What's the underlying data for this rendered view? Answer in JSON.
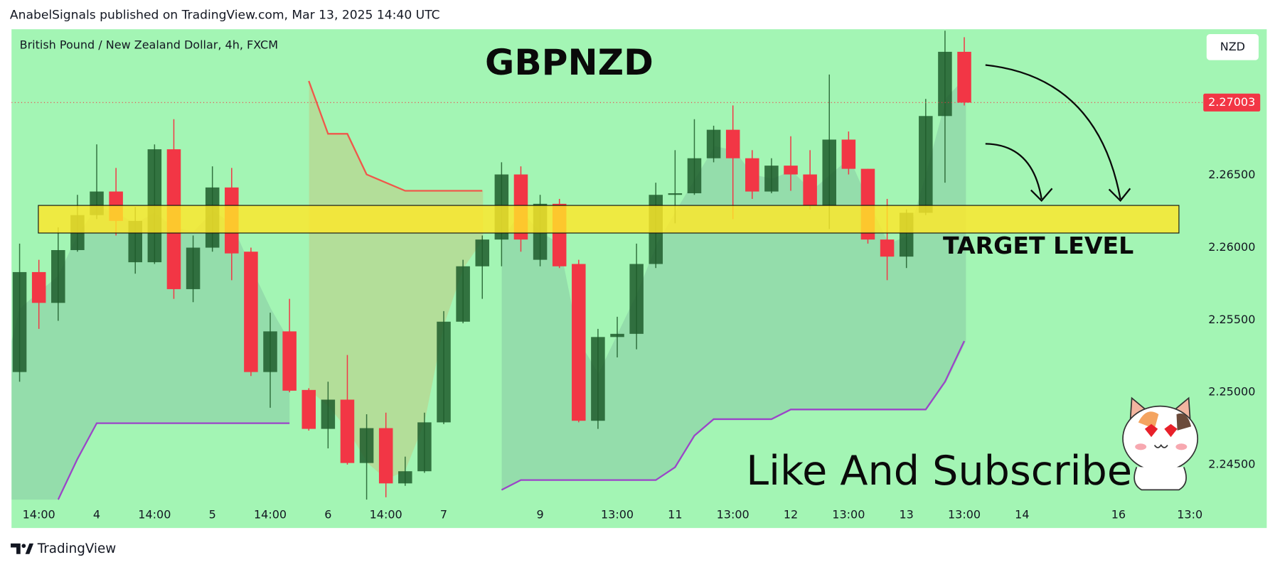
{
  "header": {
    "text": "AnabelSignals published on TradingView.com, Mar 13, 2025 14:40 UTC"
  },
  "footer": {
    "brand": "TradingView"
  },
  "chart_data": {
    "type": "candlestick",
    "title": "GBPNZD",
    "symbol_label": "British Pound / New Zealand Dollar, 4h, FXCM",
    "currency": "NZD",
    "x": [
      0,
      1,
      2,
      3,
      4,
      5,
      6,
      7,
      8,
      9,
      10,
      11,
      12,
      13,
      14,
      15,
      16,
      17,
      18,
      19,
      20,
      21,
      22,
      23,
      24,
      25,
      26,
      27,
      28,
      29,
      30,
      31,
      32,
      33,
      34,
      35,
      36,
      37,
      38,
      39,
      40,
      41,
      42,
      43,
      44,
      45,
      46,
      47,
      48,
      49
    ],
    "open": [
      2.2514,
      2.25831,
      2.25618,
      2.25983,
      2.26225,
      2.26388,
      2.25899,
      2.25899,
      2.2668,
      2.25713,
      2.26,
      2.26416,
      2.25972,
      2.2514,
      2.25421,
      2.25016,
      2.24747,
      2.24949,
      2.24511,
      2.24752,
      2.2437,
      2.24454,
      2.24792,
      2.25488,
      2.25871,
      2.26056,
      2.26506,
      2.25916,
      2.26303,
      2.25887,
      2.24803,
      2.25382,
      2.25404,
      2.25887,
      2.26365,
      2.26376,
      2.26618,
      2.26815,
      2.26618,
      2.26388,
      2.26567,
      2.26506,
      2.26292,
      2.26747,
      2.26545,
      2.26056,
      2.25938,
      2.26241,
      2.2691,
      2.27354
    ],
    "high": [
      2.26028,
      2.25916,
      2.2614,
      2.26365,
      2.26714,
      2.26551,
      2.26281,
      2.26714,
      2.26888,
      2.26084,
      2.26562,
      2.26551,
      2.26,
      2.2555,
      2.25646,
      2.25028,
      2.25073,
      2.25258,
      2.24848,
      2.24859,
      2.24555,
      2.24859,
      2.25561,
      2.25916,
      2.26084,
      2.2659,
      2.26562,
      2.26365,
      2.26337,
      2.25916,
      2.25438,
      2.25522,
      2.26028,
      2.26449,
      2.26674,
      2.26888,
      2.26843,
      2.26983,
      2.26674,
      2.26618,
      2.2677,
      2.26674,
      2.27197,
      2.26803,
      2.26545,
      2.26337,
      2.26264,
      2.27028,
      2.275,
      2.27455
    ],
    "low": [
      2.25073,
      2.25438,
      2.25494,
      2.25972,
      2.26197,
      2.26084,
      2.2582,
      2.25887,
      2.25646,
      2.25623,
      2.25972,
      2.25775,
      2.25112,
      2.24893,
      2.25,
      2.24735,
      2.24612,
      2.245,
      2.24258,
      2.24274,
      2.24353,
      2.24443,
      2.2478,
      2.25477,
      2.25646,
      2.25871,
      2.25972,
      2.25871,
      2.25859,
      2.24792,
      2.24747,
      2.25241,
      2.25297,
      2.25859,
      2.26168,
      2.26365,
      2.2659,
      2.26197,
      2.26337,
      2.26376,
      2.26393,
      2.26264,
      2.26129,
      2.26506,
      2.26028,
      2.25775,
      2.25859,
      2.26225,
      2.26449,
      2.26983
    ],
    "close": [
      2.25831,
      2.25618,
      2.25983,
      2.26225,
      2.26388,
      2.26185,
      2.26185,
      2.2668,
      2.25713,
      2.26,
      2.26416,
      2.2596,
      2.2514,
      2.25421,
      2.25011,
      2.24747,
      2.24949,
      2.24511,
      2.24752,
      2.2437,
      2.24454,
      2.24792,
      2.25488,
      2.25871,
      2.26056,
      2.26506,
      2.26056,
      2.26303,
      2.25871,
      2.24803,
      2.25382,
      2.25404,
      2.25887,
      2.26365,
      2.26376,
      2.26618,
      2.26815,
      2.26618,
      2.26388,
      2.26567,
      2.26506,
      2.26292,
      2.26747,
      2.26545,
      2.26056,
      2.25938,
      2.26241,
      2.2691,
      2.27354,
      2.27003
    ],
    "up_color": "#1f5c2b",
    "down_color": "#f23645",
    "xlim": [
      -0.42,
      61.4
    ],
    "xticks": [
      {
        "value": 1,
        "label": "14:00"
      },
      {
        "value": 4,
        "label": "4"
      },
      {
        "value": 7,
        "label": "14:00"
      },
      {
        "value": 10,
        "label": "5"
      },
      {
        "value": 13,
        "label": "14:00"
      },
      {
        "value": 16,
        "label": "6"
      },
      {
        "value": 19,
        "label": "14:00"
      },
      {
        "value": 22,
        "label": "7"
      },
      {
        "value": 27,
        "label": "9"
      },
      {
        "value": 31,
        "label": "13:00"
      },
      {
        "value": 34,
        "label": "11"
      },
      {
        "value": 37,
        "label": "13:00"
      },
      {
        "value": 40,
        "label": "12"
      },
      {
        "value": 43,
        "label": "13:00"
      },
      {
        "value": 46,
        "label": "13"
      },
      {
        "value": 49,
        "label": "13:00"
      },
      {
        "value": 52,
        "label": "14"
      },
      {
        "value": 57,
        "label": "16"
      },
      {
        "value": 60.7,
        "label": "13:0"
      }
    ],
    "ylim": [
      2.2423,
      2.2751
    ],
    "yticks": [
      {
        "value": 2.245,
        "label": "2.24500"
      },
      {
        "value": 2.25,
        "label": "2.25000"
      },
      {
        "value": 2.255,
        "label": "2.25500"
      },
      {
        "value": 2.26,
        "label": "2.26000"
      },
      {
        "value": 2.265,
        "label": "2.26500"
      }
    ],
    "last_price": {
      "value": 2.27003,
      "label": "2.27003"
    },
    "indicator_lines": [
      {
        "color": "#f0574a",
        "x": [
          15,
          16,
          17,
          18,
          20,
          24
        ],
        "values": [
          2.27152,
          2.26787,
          2.26787,
          2.26506,
          2.26393,
          2.26393
        ]
      },
      {
        "color": "#9b45c8",
        "x": [
          2,
          3,
          4,
          14,
          null,
          25,
          26,
          33,
          34,
          35,
          36,
          39,
          40,
          47,
          48,
          49
        ],
        "values": [
          2.24258,
          2.24539,
          2.24786,
          2.24786,
          null,
          2.24325,
          2.24393,
          2.24393,
          2.24482,
          2.247,
          2.24814,
          2.24814,
          2.24881,
          2.24881,
          2.25073,
          2.25354
        ]
      }
    ],
    "target_zone": {
      "label": "TARGET LEVEL",
      "range": [
        2.26101,
        2.26292
      ]
    },
    "annotations": [
      "Like And Subscribe"
    ]
  }
}
